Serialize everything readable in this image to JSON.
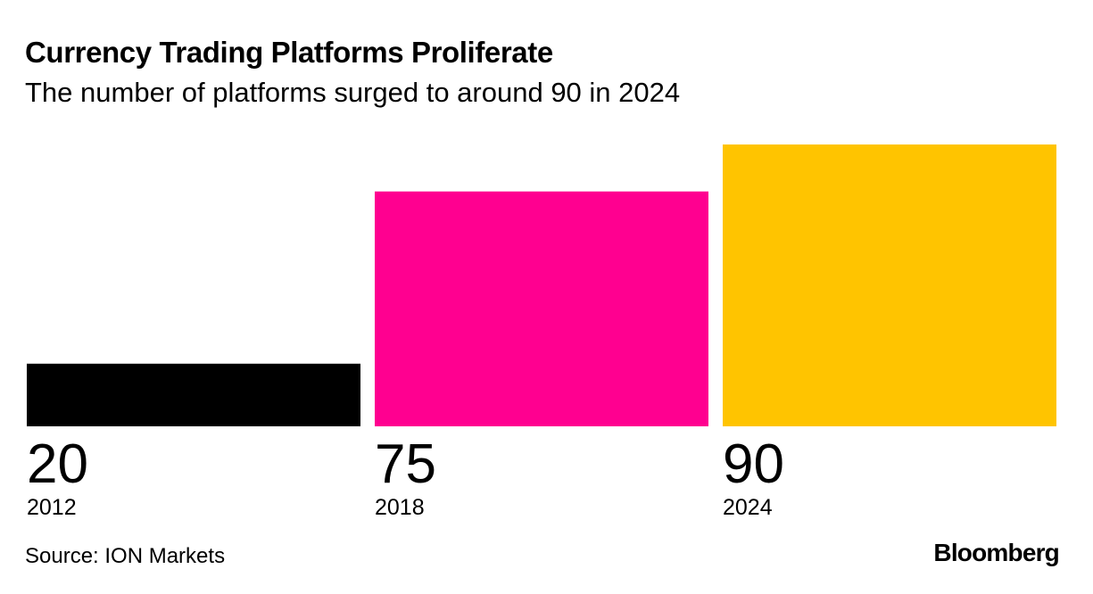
{
  "chart_data": {
    "type": "bar",
    "title": "Currency Trading Platforms Proliferate",
    "subtitle": "The number of platforms surged to around 90 in 2024",
    "categories": [
      "2012",
      "2018",
      "2024"
    ],
    "values": [
      20,
      75,
      90
    ],
    "value_labels": [
      "20",
      "75",
      "90"
    ],
    "colors": [
      "#000000",
      "#ff0090",
      "#ffc400"
    ],
    "xlabel": "",
    "ylabel": "",
    "ylim": [
      0,
      90
    ],
    "grid": false
  },
  "footer": {
    "source": "Source: ION Markets",
    "brand": "Bloomberg"
  }
}
